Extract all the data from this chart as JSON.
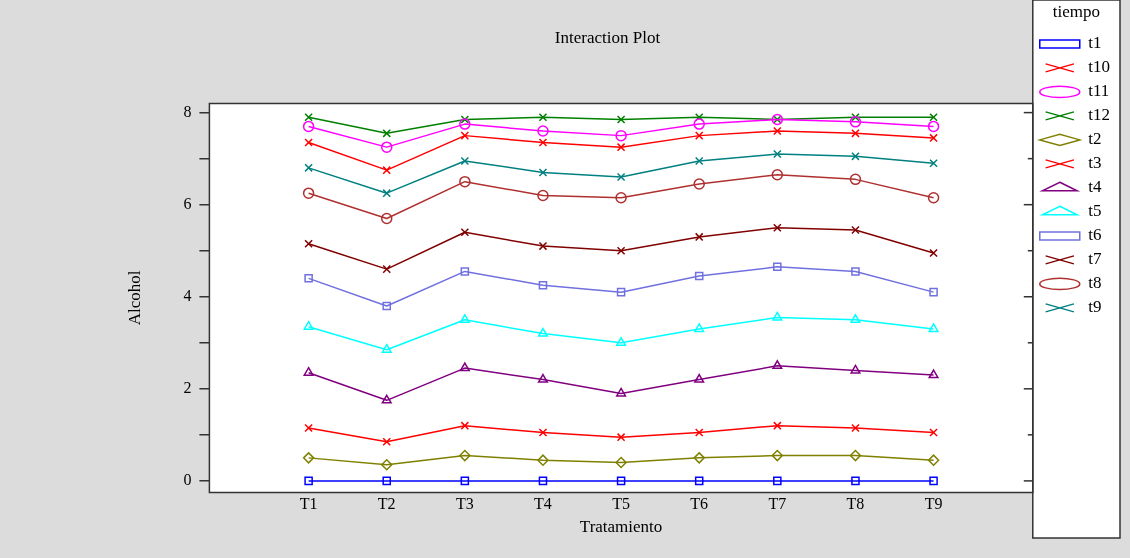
{
  "chart_data": {
    "type": "line",
    "title": "Interaction Plot",
    "xlabel": "Tratamiento",
    "ylabel": "Alcohol",
    "legend_title": "tiempo",
    "legend": "right",
    "grid": false,
    "categories": [
      "T1",
      "T2",
      "T3",
      "T4",
      "T5",
      "T6",
      "T7",
      "T8",
      "T9"
    ],
    "ylim": [
      -0.25,
      8.2
    ],
    "yticks": [
      0,
      {
        "value": 1,
        "label": null
      },
      2,
      {
        "value": 3,
        "label": null
      },
      4,
      {
        "value": 5,
        "label": null
      },
      6,
      {
        "value": 7,
        "label": null
      },
      8
    ],
    "series": [
      {
        "name": "t1",
        "color": "#0000ff",
        "marker": "square",
        "values": [
          0,
          0,
          0,
          0,
          0,
          0,
          0,
          0,
          0
        ]
      },
      {
        "name": "t10",
        "color": "#ff0000",
        "marker": "cross",
        "values": [
          7.35,
          6.75,
          7.5,
          7.35,
          7.25,
          7.5,
          7.6,
          7.55,
          7.45
        ]
      },
      {
        "name": "t11",
        "color": "#ff00ff",
        "marker": "circle",
        "values": [
          7.7,
          7.25,
          7.75,
          7.6,
          7.5,
          7.75,
          7.85,
          7.8,
          7.7
        ]
      },
      {
        "name": "t12",
        "color": "#008000",
        "marker": "cross",
        "values": [
          7.9,
          7.55,
          7.85,
          7.9,
          7.85,
          7.9,
          7.85,
          7.9,
          7.9
        ]
      },
      {
        "name": "t2",
        "color": "#808000",
        "marker": "diamond",
        "values": [
          0.5,
          0.35,
          0.55,
          0.45,
          0.4,
          0.5,
          0.55,
          0.55,
          0.45
        ]
      },
      {
        "name": "t3",
        "color": "#ff0000",
        "marker": "cross",
        "values": [
          1.15,
          0.85,
          1.2,
          1.05,
          0.95,
          1.05,
          1.2,
          1.15,
          1.05
        ]
      },
      {
        "name": "t4",
        "color": "#800080",
        "marker": "triangle",
        "values": [
          2.35,
          1.75,
          2.45,
          2.2,
          1.9,
          2.2,
          2.5,
          2.4,
          2.3
        ]
      },
      {
        "name": "t5",
        "color": "#00ffff",
        "marker": "triangle",
        "values": [
          3.35,
          2.85,
          3.5,
          3.2,
          3.0,
          3.3,
          3.55,
          3.5,
          3.3
        ]
      },
      {
        "name": "t6",
        "color": "#7070e0",
        "marker": "square",
        "values": [
          4.4,
          3.8,
          4.55,
          4.25,
          4.1,
          4.45,
          4.65,
          4.55,
          4.1
        ]
      },
      {
        "name": "t7",
        "color": "#800000",
        "marker": "cross",
        "values": [
          5.15,
          4.6,
          5.4,
          5.1,
          5.0,
          5.3,
          5.5,
          5.45,
          4.95
        ]
      },
      {
        "name": "t8",
        "color": "#b03030",
        "marker": "circle",
        "values": [
          6.25,
          5.7,
          6.5,
          6.2,
          6.15,
          6.45,
          6.65,
          6.55,
          6.15
        ]
      },
      {
        "name": "t9",
        "color": "#008080",
        "marker": "cross",
        "values": [
          6.8,
          6.25,
          6.95,
          6.7,
          6.6,
          6.95,
          7.1,
          7.05,
          6.9
        ]
      }
    ]
  }
}
